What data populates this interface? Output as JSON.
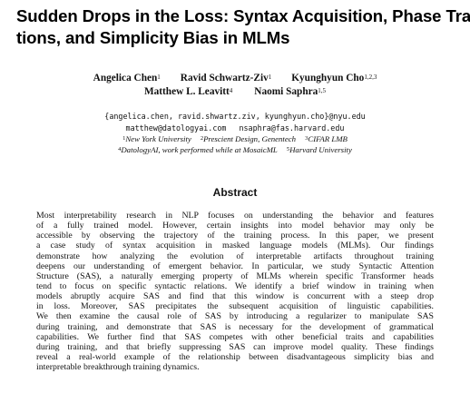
{
  "paper": {
    "title_lines": [
      "Sudden Drops in the Loss: Syntax Acquisition, Phase Transi-",
      "tions, and Simplicity Bias in MLMs"
    ],
    "authors": [
      {
        "name": "Angelica Chen",
        "affiliation": "1"
      },
      {
        "name": "Ravid Schwartz-Ziv",
        "affiliation": "1"
      },
      {
        "name": "Kyunghyun Cho",
        "affiliation": "1,2,3"
      },
      {
        "name": "Matthew L. Leavitt",
        "affiliation": "4"
      },
      {
        "name": "Naomi Saphra",
        "affiliation": "1,5"
      }
    ],
    "emails": {
      "line1": "{angelica.chen, ravid.shwartz.ziv, kyunghyun.cho}@nyu.edu",
      "line2_a": "matthew@datologyai.com",
      "line2_b": "nsaphra@fas.harvard.edu"
    },
    "affiliations": [
      {
        "num": "1",
        "name": "New York University"
      },
      {
        "num": "2",
        "name": "Prescient Design, Genentech"
      },
      {
        "num": "3",
        "name": "CIFAR LMB"
      },
      {
        "num": "4",
        "name": "DatologyAI, work performed while at MosaicML"
      },
      {
        "num": "5",
        "name": "Harvard University"
      }
    ],
    "abstract_heading": "Abstract",
    "abstract_lines": [
      "Most interpretability research in NLP focuses on understanding the behavior and features",
      "of a fully trained model. However, certain insights into model behavior may only be",
      "accessible by observing the trajectory of the training process. In this paper, we present",
      "a case study of syntax acquisition in masked language models (MLMs). Our findings",
      "demonstrate how analyzing the evolution of interpretable artifacts throughout training",
      "deepens our understanding of emergent behavior. In particular, we study Syntactic Attention",
      "Structure (SAS), a naturally emerging property of MLMs wherein specific Transformer heads",
      "tend to focus on specific syntactic relations. We identify a brief window in training when",
      "models abruptly acquire SAS and find that this window is concurrent with a steep drop",
      "in loss. Moreover, SAS precipitates the subsequent acquisition of linguistic capabilities.",
      "We then examine the causal role of SAS by introducing a regularizer to manipulate SAS",
      "during training, and demonstrate that SAS is necessary for the development of grammatical",
      "capabilities. We further find that SAS competes with other beneficial traits and capabilities",
      "during training, and that briefly suppressing SAS can improve model quality. These findings",
      "reveal a real-world example of the relationship between disadvantageous simplicity bias and",
      "interpretable breakthrough training dynamics."
    ]
  }
}
